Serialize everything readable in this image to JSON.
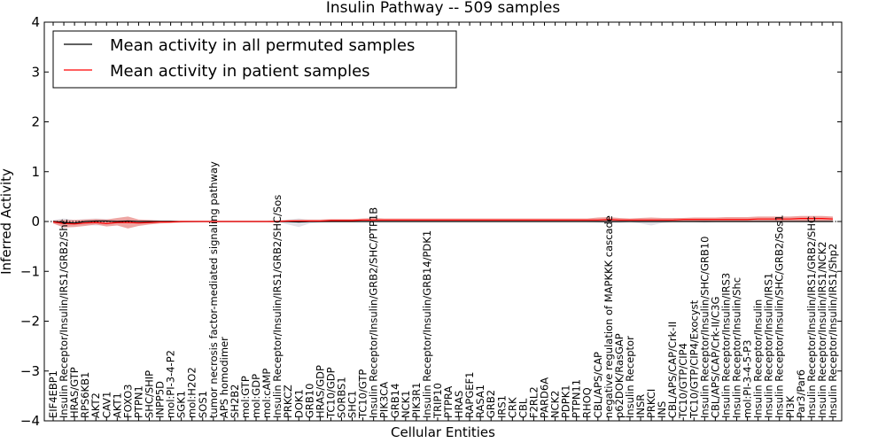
{
  "chart_data": {
    "type": "line",
    "title": "Insulin Pathway -- 509 samples",
    "xlabel": "Cellular Entities",
    "ylabel": "Inferred Activity",
    "ylim": [
      -4,
      4
    ],
    "yticks": [
      -4,
      -3,
      -2,
      -1,
      0,
      1,
      2,
      3,
      4
    ],
    "ytick_labels": [
      "−4",
      "−3",
      "−2",
      "−1",
      "0",
      "1",
      "2",
      "3",
      "4"
    ],
    "grid": false,
    "legend_position": "top-left",
    "reference_line": {
      "y": 0,
      "style": "dotted"
    },
    "categories": [
      "EIF4EBP1",
      "Insulin Receptor/Insulin/IRS1/GRB2/Shc",
      "HRAS/GTP",
      "RPS6KB1",
      "AKT2",
      "CAV1",
      "AKT1",
      "FOXO3",
      "PTPN1",
      "SHC/SHIP",
      "INPP5D",
      "mol:PI-3-4-P2",
      "SGK1",
      "mol:H2O2",
      "SOS1",
      "tumor necrosis factor-mediated signaling pathway",
      "APS homodimer",
      "SH2B2",
      "mol:GTP",
      "mol:GDP",
      "mol:cAMP",
      "Insulin Receptor/Insulin/IRS1/GRB2/SHC/Sos",
      "PRKCZ",
      "DOK1",
      "GRB10",
      "HRAS/GDP",
      "TC10/GDP",
      "SORBS1",
      "SHC1",
      "TC10/GTP",
      "Insulin Receptor/Insulin/GRB2/SHC/PTP1B",
      "PIK3CA",
      "GRB14",
      "NCK1",
      "PIK3R1",
      "Insulin Receptor/Insulin/GRB14/PDK1",
      "TRIP10",
      "PTPRA",
      "HRAS",
      "RAPGEF1",
      "RASA1",
      "GRB2",
      "IRS1",
      "CRK",
      "CBL",
      "F2RL2",
      "PARD6A",
      "NCK2",
      "PDPK1",
      "PTPN11",
      "RHOQ",
      "CBL/APS/CAP",
      "negative regulation of MAPKKK cascade",
      "p62DOK/RasGAP",
      "Insulin Receptor",
      "INSR",
      "PRKCI",
      "INS",
      "CBL/APS/CAP/Crk-II",
      "TC10/GTP/CIP4",
      "TC10/GTP/CIP4/Exocyst",
      "Insulin Receptor/Insulin/SHC/GRB10",
      "CBL/APS/CAP/Crk-II/C3G",
      "Insulin Receptor/Insulin/IRS3",
      "Insulin Receptor/Insulin/Shc",
      "mol:PI-3-4-5-P3",
      "Insulin Receptor/Insulin",
      "Insulin Receptor/Insulin/IRS1",
      "Insulin Receptor/Insulin/SHC/GRB2/Sos1",
      "PI3K",
      "Par3/Par6",
      "Insulin Receptor/Insulin/IRS1/GRB2/SHC",
      "Insulin Receptor/Insulin/IRS1/NCK2",
      "Insulin Receptor/Insulin/IRS1/Shp2"
    ],
    "series": [
      {
        "name": "Mean activity in all permuted samples",
        "color": "#000000",
        "values": [
          0,
          -0.02,
          -0.03,
          0,
          0.01,
          0.01,
          0,
          0.01,
          0,
          0,
          0,
          0,
          0,
          0,
          0,
          0,
          0,
          0,
          0,
          0,
          0,
          0,
          0,
          -0.01,
          0,
          0,
          0,
          0,
          0,
          0,
          0,
          0,
          0,
          0,
          0,
          0,
          0,
          0,
          0,
          0,
          0,
          0,
          0,
          0,
          0,
          0,
          0,
          0,
          0,
          0,
          0,
          0,
          0,
          0,
          0,
          0,
          0,
          0,
          0,
          0,
          0,
          0,
          0,
          0,
          0,
          0,
          0,
          0,
          0,
          0,
          0,
          0,
          0,
          0
        ],
        "band_low": [
          -0.03,
          -0.12,
          -0.07,
          -0.07,
          -0.08,
          -0.07,
          -0.05,
          -0.02,
          -0.05,
          -0.04,
          -0.03,
          -0.02,
          -0.02,
          -0.02,
          -0.01,
          -0.01,
          -0.01,
          -0.01,
          -0.01,
          -0.01,
          -0.01,
          -0.01,
          -0.06,
          -0.11,
          -0.04,
          -0.02,
          -0.01,
          -0.01,
          -0.01,
          -0.01,
          -0.01,
          -0.01,
          -0.01,
          -0.01,
          -0.01,
          -0.01,
          -0.01,
          -0.01,
          -0.01,
          -0.01,
          -0.01,
          -0.01,
          -0.01,
          -0.01,
          -0.01,
          -0.01,
          -0.01,
          -0.01,
          -0.01,
          -0.01,
          -0.01,
          -0.02,
          -0.03,
          -0.03,
          -0.01,
          -0.04,
          -0.08,
          -0.03,
          -0.01,
          -0.01,
          -0.01,
          -0.02,
          -0.01,
          -0.01,
          -0.01,
          -0.01,
          -0.01,
          -0.01,
          -0.01,
          -0.01,
          -0.01,
          -0.01,
          -0.01,
          -0.01
        ],
        "band_high": [
          0.03,
          0.06,
          0.03,
          0.05,
          0.06,
          0.05,
          0.04,
          0.04,
          0.03,
          0.03,
          0.02,
          0.01,
          0.01,
          0.01,
          0.01,
          0.01,
          0.01,
          0.01,
          0.01,
          0.01,
          0.01,
          0.01,
          0.04,
          0.06,
          0.03,
          0.02,
          0.01,
          0.01,
          0.01,
          0.01,
          0.01,
          0.01,
          0.01,
          0.01,
          0.01,
          0.01,
          0.01,
          0.01,
          0.01,
          0.01,
          0.01,
          0.01,
          0.01,
          0.01,
          0.01,
          0.01,
          0.01,
          0.01,
          0.01,
          0.01,
          0.02,
          0.04,
          0.05,
          0.03,
          0.01,
          0.03,
          0.05,
          0.03,
          0.01,
          0.01,
          0.01,
          0.02,
          0.01,
          0.01,
          0.01,
          0.01,
          0.01,
          0.01,
          0.01,
          0.01,
          0.01,
          0.01,
          0.01,
          0.01
        ],
        "band_color": "#d8d8e0"
      },
      {
        "name": "Mean activity in patient samples",
        "color": "#ff0000",
        "values": [
          -0.01,
          -0.04,
          -0.05,
          -0.03,
          -0.02,
          -0.04,
          -0.02,
          -0.02,
          -0.03,
          -0.02,
          -0.01,
          -0.01,
          0,
          0,
          0,
          0,
          0,
          0,
          0,
          0,
          0,
          0,
          0.01,
          0.01,
          0.01,
          0.01,
          0.02,
          0.02,
          0.02,
          0.03,
          0.03,
          0.03,
          0.03,
          0.03,
          0.03,
          0.03,
          0.03,
          0.03,
          0.03,
          0.03,
          0.03,
          0.03,
          0.03,
          0.03,
          0.03,
          0.03,
          0.03,
          0.03,
          0.03,
          0.03,
          0.03,
          0.03,
          0.04,
          0.03,
          0.03,
          0.03,
          0.03,
          0.03,
          0.03,
          0.04,
          0.04,
          0.04,
          0.04,
          0.04,
          0.04,
          0.04,
          0.05,
          0.05,
          0.05,
          0.05,
          0.06,
          0.06,
          0.06,
          0.05
        ],
        "band_low": [
          -0.04,
          -0.12,
          -0.11,
          -0.09,
          -0.06,
          -0.1,
          -0.08,
          -0.14,
          -0.09,
          -0.06,
          -0.04,
          -0.03,
          -0.02,
          -0.01,
          -0.01,
          -0.01,
          -0.01,
          -0.01,
          -0.01,
          -0.01,
          -0.01,
          -0.01,
          -0.01,
          -0.01,
          -0.01,
          0,
          0,
          0,
          0.01,
          0.01,
          0,
          0.01,
          0.01,
          0.01,
          0.01,
          0.01,
          0.01,
          0.01,
          0.01,
          0.01,
          0.01,
          0.01,
          0.01,
          0.01,
          0.01,
          0.01,
          0.01,
          0.01,
          0.01,
          0.01,
          0.01,
          0,
          0,
          0,
          0.01,
          0,
          -0.01,
          0,
          0.01,
          0.01,
          0.01,
          0.01,
          0.01,
          0.01,
          0.01,
          0.01,
          0.01,
          0.01,
          0.01,
          0.01,
          0.01,
          0.01,
          0.01,
          0.01
        ],
        "band_high": [
          0.02,
          0.03,
          0.03,
          0.04,
          0.05,
          0.04,
          0.07,
          0.1,
          0.04,
          0.03,
          0.02,
          0.02,
          0.01,
          0.01,
          0.01,
          0.01,
          0.01,
          0.01,
          0.01,
          0.01,
          0.01,
          0.02,
          0.03,
          0.04,
          0.04,
          0.04,
          0.05,
          0.05,
          0.05,
          0.06,
          0.07,
          0.06,
          0.06,
          0.06,
          0.06,
          0.06,
          0.06,
          0.06,
          0.06,
          0.06,
          0.06,
          0.06,
          0.06,
          0.06,
          0.06,
          0.06,
          0.06,
          0.06,
          0.06,
          0.06,
          0.06,
          0.08,
          0.09,
          0.07,
          0.06,
          0.07,
          0.08,
          0.07,
          0.07,
          0.07,
          0.08,
          0.08,
          0.08,
          0.09,
          0.09,
          0.09,
          0.1,
          0.1,
          0.1,
          0.1,
          0.11,
          0.11,
          0.11,
          0.1
        ],
        "band_color": "#e8908c"
      }
    ]
  }
}
